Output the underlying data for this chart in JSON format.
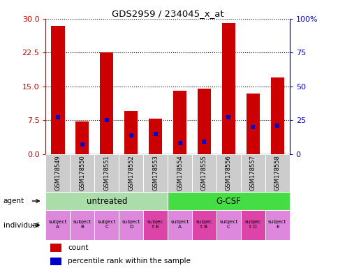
{
  "title": "GDS2959 / 234045_x_at",
  "samples": [
    "GSM178549",
    "GSM178550",
    "GSM178551",
    "GSM178552",
    "GSM178553",
    "GSM178554",
    "GSM178555",
    "GSM178556",
    "GSM178557",
    "GSM178558"
  ],
  "count_values": [
    28.5,
    7.2,
    22.5,
    9.5,
    7.8,
    14.0,
    14.5,
    29.0,
    13.5,
    17.0
  ],
  "percentile_values": [
    27,
    7,
    25,
    14,
    15,
    8,
    9,
    27,
    20,
    21
  ],
  "agent_groups": [
    {
      "label": "untreated",
      "start": 0,
      "end": 5,
      "color": "#aaddaa"
    },
    {
      "label": "G-CSF",
      "start": 5,
      "end": 10,
      "color": "#44dd44"
    }
  ],
  "individual_labels": [
    "subject\nA",
    "subject\nB",
    "subject\nC",
    "subject\nD",
    "subjec\nt E",
    "subject\nA",
    "subjec\nt B",
    "subject\nC",
    "subjec\nt D",
    "subject\nE"
  ],
  "individual_highlight": [
    false,
    false,
    false,
    false,
    true,
    false,
    true,
    false,
    true,
    false
  ],
  "individual_color_normal": "#dd88dd",
  "individual_color_highlight": "#dd44aa",
  "bar_color": "#cc0000",
  "percentile_color": "#0000cc",
  "left_axis_color": "#cc0000",
  "right_axis_color": "#0000cc",
  "yticks_left": [
    0,
    7.5,
    15,
    22.5,
    30
  ],
  "yticks_right": [
    0,
    25,
    50,
    75,
    100
  ],
  "ylim_left": [
    0,
    30
  ],
  "ylim_right": [
    0,
    100
  ],
  "cell_bg_color": "#cccccc"
}
